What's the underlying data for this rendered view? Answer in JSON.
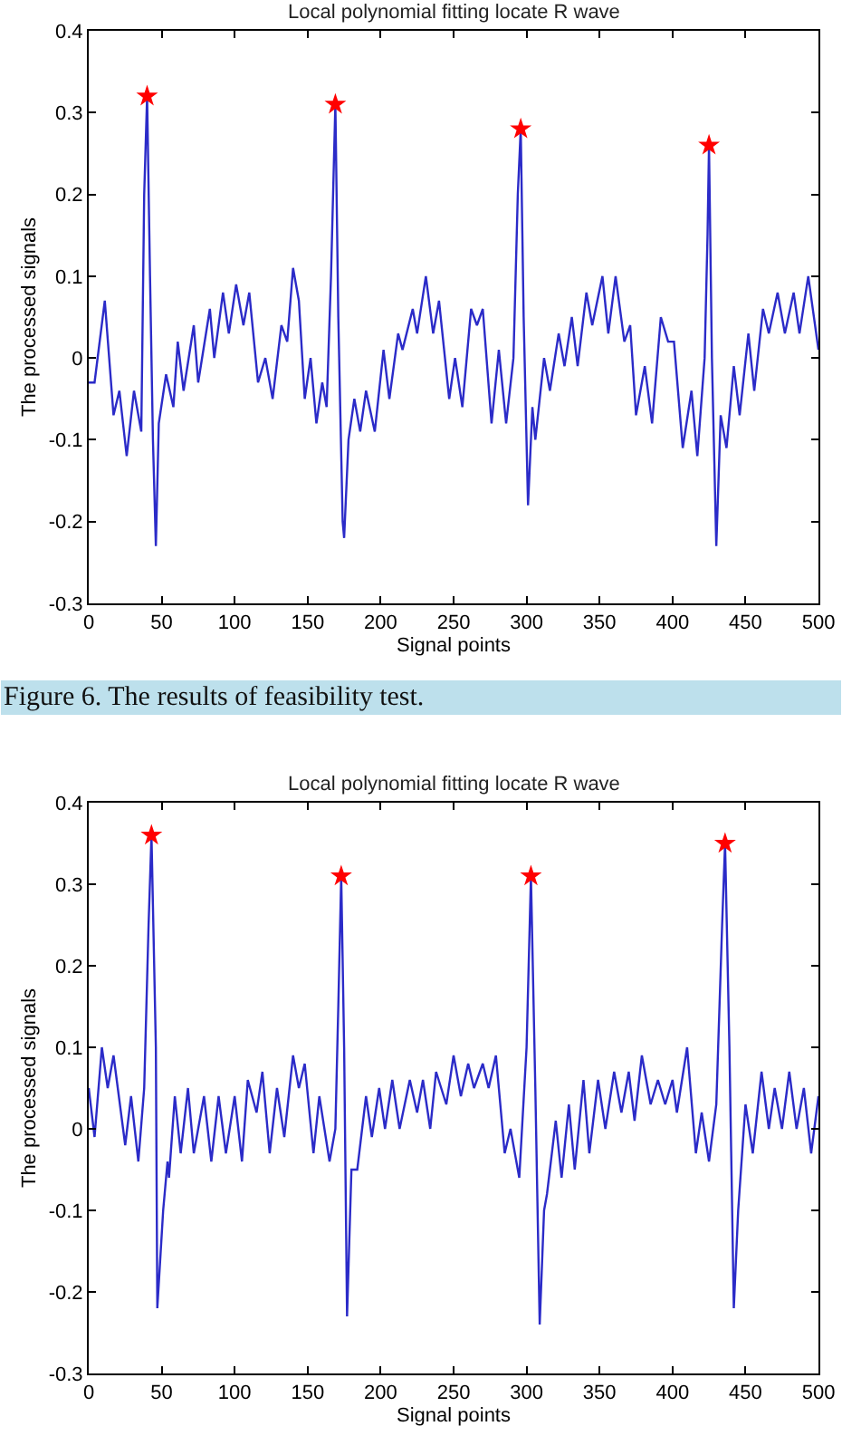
{
  "chart_data": [
    {
      "type": "line",
      "title": "Local polynomial fitting locate R wave",
      "xlabel": "Signal points",
      "ylabel": "The processed signals",
      "xlim": [
        0,
        500
      ],
      "xticks": [
        0,
        50,
        100,
        150,
        200,
        250,
        300,
        350,
        400,
        450,
        500
      ],
      "ylim": [
        -0.3,
        0.4
      ],
      "yticks": [
        -0.3,
        -0.2,
        -0.1,
        0,
        0.1,
        0.2,
        0.3,
        0.4
      ],
      "grid": false,
      "annotations": [
        "Figure 6. The results of feasibility test."
      ],
      "series": [
        {
          "color": "#2b2bc8",
          "marker": "none",
          "line_style": "solid",
          "x": [
            0,
            4,
            11,
            17,
            21,
            26,
            31,
            36,
            38,
            40,
            42,
            44,
            46,
            48,
            53,
            58,
            61,
            65,
            72,
            75,
            83,
            86,
            92,
            96,
            101,
            106,
            110,
            116,
            121,
            126,
            132,
            136,
            140,
            144,
            148,
            152,
            156,
            160,
            163,
            166,
            169,
            171,
            174,
            175,
            178,
            182,
            186,
            190,
            196,
            202,
            206,
            212,
            215,
            222,
            225,
            231,
            236,
            240,
            247,
            251,
            256,
            262,
            266,
            270,
            276,
            281,
            286,
            291,
            294,
            296,
            298,
            301,
            304,
            306,
            312,
            316,
            322,
            326,
            331,
            335,
            341,
            345,
            352,
            356,
            361,
            367,
            371,
            375,
            381,
            386,
            392,
            397,
            401,
            407,
            413,
            417,
            422,
            424,
            425,
            427,
            430,
            433,
            437,
            442,
            446,
            452,
            456,
            462,
            466,
            472,
            477,
            483,
            487,
            493,
            500
          ],
          "values": [
            -0.03,
            -0.03,
            0.07,
            -0.07,
            -0.04,
            -0.12,
            -0.04,
            -0.09,
            0.2,
            0.32,
            0.1,
            -0.1,
            -0.23,
            -0.08,
            -0.02,
            -0.06,
            0.02,
            -0.04,
            0.04,
            -0.03,
            0.06,
            0.0,
            0.08,
            0.03,
            0.09,
            0.04,
            0.08,
            -0.03,
            0.0,
            -0.05,
            0.04,
            0.02,
            0.11,
            0.07,
            -0.05,
            0.0,
            -0.08,
            -0.03,
            -0.06,
            0.1,
            0.31,
            0.05,
            -0.2,
            -0.22,
            -0.1,
            -0.05,
            -0.09,
            -0.04,
            -0.09,
            0.01,
            -0.05,
            0.03,
            0.01,
            0.06,
            0.03,
            0.1,
            0.03,
            0.07,
            -0.05,
            0.0,
            -0.06,
            0.06,
            0.04,
            0.06,
            -0.08,
            0.01,
            -0.08,
            0.0,
            0.2,
            0.28,
            0.05,
            -0.18,
            -0.06,
            -0.1,
            0.0,
            -0.04,
            0.03,
            -0.01,
            0.05,
            -0.01,
            0.08,
            0.04,
            0.1,
            0.03,
            0.1,
            0.02,
            0.04,
            -0.07,
            -0.01,
            -0.08,
            0.05,
            0.02,
            0.02,
            -0.11,
            -0.04,
            -0.12,
            0.0,
            0.15,
            0.26,
            0.0,
            -0.23,
            -0.07,
            -0.11,
            -0.01,
            -0.07,
            0.03,
            -0.04,
            0.06,
            0.03,
            0.08,
            0.03,
            0.08,
            0.03,
            0.1,
            0.01
          ]
        },
        {
          "type": "scatter",
          "color": "#ff0000",
          "marker": "star",
          "x": [
            40,
            169,
            296,
            425
          ],
          "values": [
            0.32,
            0.31,
            0.28,
            0.26
          ]
        }
      ]
    },
    {
      "type": "line",
      "title": "Local polynomial fitting locate R wave",
      "xlabel": "Signal points",
      "ylabel": "The processed signals",
      "xlim": [
        0,
        500
      ],
      "xticks": [
        0,
        50,
        100,
        150,
        200,
        250,
        300,
        350,
        400,
        450,
        500
      ],
      "ylim": [
        -0.3,
        0.4
      ],
      "yticks": [
        -0.3,
        -0.2,
        -0.1,
        0,
        0.1,
        0.2,
        0.3,
        0.4
      ],
      "grid": false,
      "series": [
        {
          "color": "#2b2bc8",
          "marker": "none",
          "line_style": "solid",
          "x": [
            0,
            4,
            9,
            13,
            17,
            25,
            29,
            34,
            38,
            41,
            43,
            46,
            47,
            51,
            54,
            55,
            59,
            63,
            68,
            72,
            79,
            84,
            89,
            94,
            100,
            105,
            109,
            115,
            119,
            124,
            129,
            134,
            140,
            144,
            148,
            154,
            158,
            165,
            169,
            171,
            173,
            175,
            177,
            180,
            184,
            190,
            194,
            199,
            203,
            208,
            213,
            220,
            225,
            229,
            234,
            238,
            245,
            250,
            255,
            260,
            264,
            270,
            274,
            279,
            285,
            289,
            295,
            300,
            303,
            306,
            309,
            312,
            314,
            320,
            324,
            329,
            333,
            339,
            343,
            349,
            354,
            360,
            365,
            370,
            374,
            379,
            385,
            390,
            395,
            400,
            403,
            410,
            416,
            420,
            425,
            430,
            434,
            436,
            439,
            442,
            445,
            450,
            455,
            461,
            466,
            470,
            475,
            480,
            485,
            490,
            495,
            500
          ],
          "values": [
            0.05,
            -0.01,
            0.1,
            0.05,
            0.09,
            -0.02,
            0.04,
            -0.04,
            0.05,
            0.25,
            0.36,
            0.1,
            -0.22,
            -0.1,
            -0.04,
            -0.06,
            0.04,
            -0.03,
            0.05,
            -0.03,
            0.04,
            -0.04,
            0.04,
            -0.03,
            0.04,
            -0.04,
            0.06,
            0.02,
            0.07,
            -0.03,
            0.05,
            -0.01,
            0.09,
            0.05,
            0.08,
            -0.03,
            0.04,
            -0.04,
            0.0,
            0.15,
            0.31,
            0.1,
            -0.23,
            -0.05,
            -0.05,
            0.04,
            -0.01,
            0.05,
            0.0,
            0.06,
            0.0,
            0.06,
            0.02,
            0.06,
            0.0,
            0.07,
            0.03,
            0.09,
            0.04,
            0.08,
            0.05,
            0.08,
            0.05,
            0.09,
            -0.03,
            0.0,
            -0.06,
            0.1,
            0.31,
            0.05,
            -0.24,
            -0.1,
            -0.08,
            0.01,
            -0.06,
            0.03,
            -0.05,
            0.06,
            -0.03,
            0.06,
            0.0,
            0.07,
            0.02,
            0.07,
            0.01,
            0.09,
            0.03,
            0.06,
            0.03,
            0.06,
            0.02,
            0.1,
            -0.03,
            0.02,
            -0.04,
            0.03,
            0.25,
            0.35,
            0.1,
            -0.22,
            -0.1,
            0.03,
            -0.03,
            0.07,
            0.0,
            0.05,
            0.0,
            0.07,
            0.0,
            0.05,
            -0.03,
            0.04
          ]
        },
        {
          "type": "scatter",
          "color": "#ff0000",
          "marker": "star",
          "x": [
            43,
            173,
            303,
            436
          ],
          "values": [
            0.36,
            0.31,
            0.31,
            0.35
          ]
        }
      ]
    }
  ]
}
